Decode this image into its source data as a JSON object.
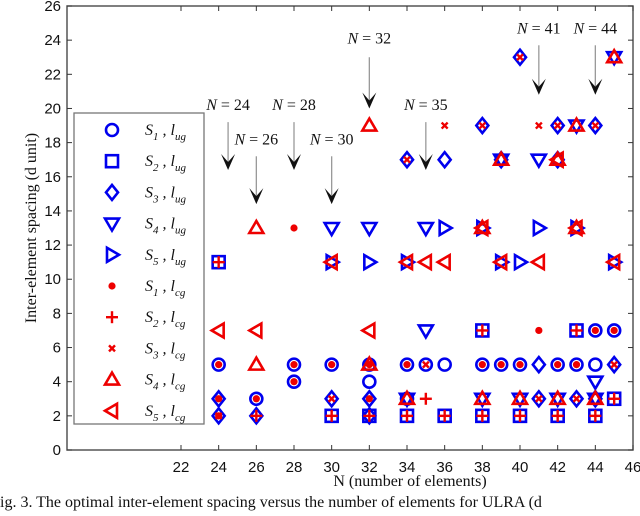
{
  "chart_data": {
    "type": "scatter",
    "title": "",
    "xlabel": "N (number of elements)",
    "ylabel": "Inter-element spacing (d unit)",
    "xlim": [
      15.9,
      46
    ],
    "ylim": [
      0,
      26
    ],
    "xticks": [
      22,
      24,
      26,
      28,
      30,
      32,
      34,
      36,
      38,
      40,
      42,
      44,
      46
    ],
    "yticks": [
      0,
      2,
      4,
      6,
      8,
      10,
      12,
      14,
      16,
      18,
      20,
      22,
      24,
      26
    ],
    "grid": false,
    "legend_position": "left-inside",
    "colors": {
      "ug": "#0000ee",
      "cg": "#ee0000",
      "axis": "#555555",
      "arrow": "#111111"
    },
    "series": [
      {
        "name": "S1, lug",
        "label": "S",
        "sub": "1",
        "l": "ug",
        "marker": "circle",
        "color": "#0000ee",
        "points": [
          [
            24,
            5
          ],
          [
            26,
            3
          ],
          [
            28,
            5
          ],
          [
            28,
            4
          ],
          [
            30,
            5
          ],
          [
            32,
            5
          ],
          [
            32,
            4
          ],
          [
            34,
            5
          ],
          [
            34,
            3
          ],
          [
            35,
            5
          ],
          [
            36,
            5
          ],
          [
            38,
            5
          ],
          [
            39,
            5
          ],
          [
            40,
            5
          ],
          [
            42,
            5
          ],
          [
            43,
            5
          ],
          [
            44,
            5
          ],
          [
            44,
            7
          ],
          [
            45,
            7
          ]
        ]
      },
      {
        "name": "S2, lug",
        "label": "S",
        "sub": "2",
        "l": "ug",
        "marker": "square",
        "color": "#0000ee",
        "points": [
          [
            30,
            2
          ],
          [
            32,
            2
          ],
          [
            34,
            2
          ],
          [
            36,
            2
          ],
          [
            38,
            2
          ],
          [
            38,
            7
          ],
          [
            40,
            2
          ],
          [
            42,
            2
          ],
          [
            43,
            7
          ],
          [
            44,
            2
          ],
          [
            45,
            3
          ],
          [
            24,
            11
          ]
        ]
      },
      {
        "name": "S3, lug",
        "label": "S",
        "sub": "3",
        "l": "ug",
        "marker": "diamond",
        "color": "#0000ee",
        "points": [
          [
            24,
            2
          ],
          [
            24,
            3
          ],
          [
            26,
            2
          ],
          [
            30,
            3
          ],
          [
            32,
            2
          ],
          [
            32,
            3
          ],
          [
            34,
            17
          ],
          [
            36,
            17
          ],
          [
            38,
            19
          ],
          [
            39,
            17
          ],
          [
            40,
            23
          ],
          [
            41,
            3
          ],
          [
            42,
            17
          ],
          [
            42,
            19
          ],
          [
            44,
            19
          ],
          [
            44,
            3
          ],
          [
            45,
            5
          ],
          [
            41,
            5
          ],
          [
            43,
            3
          ]
        ]
      },
      {
        "name": "S4, lug",
        "label": "S",
        "sub": "4",
        "l": "ug",
        "marker": "triangle-down",
        "color": "#0000ee",
        "points": [
          [
            30,
            13
          ],
          [
            32,
            13
          ],
          [
            35,
            13
          ],
          [
            35,
            7
          ],
          [
            34,
            3
          ],
          [
            38,
            3
          ],
          [
            39,
            17
          ],
          [
            40,
            3
          ],
          [
            41,
            17
          ],
          [
            42,
            3
          ],
          [
            43,
            19
          ],
          [
            44,
            4
          ],
          [
            44,
            3
          ],
          [
            45,
            23
          ]
        ]
      },
      {
        "name": "S5, lug",
        "label": "S",
        "sub": "5",
        "l": "ug",
        "marker": "triangle-right",
        "color": "#0000ee",
        "points": [
          [
            30,
            11
          ],
          [
            32,
            11
          ],
          [
            34,
            11
          ],
          [
            36,
            13
          ],
          [
            38,
            13
          ],
          [
            39,
            11
          ],
          [
            40,
            11
          ],
          [
            41,
            13
          ],
          [
            43,
            13
          ],
          [
            45,
            11
          ]
        ]
      },
      {
        "name": "S1, lcg",
        "label": "S",
        "sub": "1",
        "l": "cg",
        "marker": "dot",
        "color": "#ee0000",
        "points": [
          [
            24,
            5
          ],
          [
            24,
            3
          ],
          [
            24,
            2
          ],
          [
            26,
            3
          ],
          [
            28,
            13
          ],
          [
            28,
            5
          ],
          [
            28,
            4
          ],
          [
            30,
            5
          ],
          [
            32,
            5
          ],
          [
            32,
            3
          ],
          [
            34,
            5
          ],
          [
            38,
            5
          ],
          [
            39,
            5
          ],
          [
            40,
            5
          ],
          [
            41,
            7
          ],
          [
            42,
            5
          ],
          [
            43,
            5
          ],
          [
            44,
            7
          ],
          [
            45,
            7
          ]
        ]
      },
      {
        "name": "S2, lcg",
        "label": "S",
        "sub": "2",
        "l": "cg",
        "marker": "plus",
        "color": "#ee0000",
        "points": [
          [
            24,
            11
          ],
          [
            26,
            2
          ],
          [
            30,
            2
          ],
          [
            32,
            2
          ],
          [
            34,
            2
          ],
          [
            35,
            3
          ],
          [
            36,
            2
          ],
          [
            38,
            2
          ],
          [
            38,
            7
          ],
          [
            40,
            2
          ],
          [
            42,
            2
          ],
          [
            43,
            7
          ],
          [
            44,
            2
          ],
          [
            45,
            3
          ]
        ]
      },
      {
        "name": "S3, lcg",
        "label": "S",
        "sub": "3",
        "l": "cg",
        "marker": "x",
        "color": "#ee0000",
        "points": [
          [
            24,
            2
          ],
          [
            30,
            3
          ],
          [
            34,
            17
          ],
          [
            35,
            5
          ],
          [
            36,
            19
          ],
          [
            38,
            19
          ],
          [
            40,
            23
          ],
          [
            41,
            19
          ],
          [
            42,
            19
          ],
          [
            44,
            19
          ],
          [
            41,
            3
          ],
          [
            43,
            3
          ],
          [
            45,
            5
          ]
        ]
      },
      {
        "name": "S4, lcg",
        "label": "S",
        "sub": "4",
        "l": "cg",
        "marker": "triangle-up",
        "color": "#ee0000",
        "points": [
          [
            26,
            13
          ],
          [
            26,
            5
          ],
          [
            32,
            19
          ],
          [
            32,
            5
          ],
          [
            34,
            3
          ],
          [
            38,
            3
          ],
          [
            38,
            13
          ],
          [
            39,
            17
          ],
          [
            40,
            3
          ],
          [
            42,
            17
          ],
          [
            42,
            3
          ],
          [
            43,
            19
          ],
          [
            43,
            13
          ],
          [
            44,
            3
          ],
          [
            45,
            23
          ]
        ]
      },
      {
        "name": "S5, lcg",
        "label": "S",
        "sub": "5",
        "l": "cg",
        "marker": "triangle-left",
        "color": "#ee0000",
        "points": [
          [
            24,
            7
          ],
          [
            26,
            7
          ],
          [
            30,
            11
          ],
          [
            32,
            7
          ],
          [
            34,
            11
          ],
          [
            35,
            11
          ],
          [
            36,
            11
          ],
          [
            38,
            13
          ],
          [
            39,
            11
          ],
          [
            41,
            11
          ],
          [
            42,
            17
          ],
          [
            43,
            13
          ],
          [
            45,
            11
          ]
        ]
      }
    ],
    "annotations": [
      {
        "text_prefix": "N",
        "text_value": "= 24",
        "x": 24.5,
        "text_y": 19.9,
        "arrow_from": 19.2,
        "arrow_to": 16.4
      },
      {
        "text_prefix": "N",
        "text_value": "= 26",
        "x": 26,
        "text_y": 17.9,
        "arrow_from": 17.2,
        "arrow_to": 14.4
      },
      {
        "text_prefix": "N",
        "text_value": "= 28",
        "x": 28,
        "text_y": 19.9,
        "arrow_from": 19.2,
        "arrow_to": 16.4
      },
      {
        "text_prefix": "N",
        "text_value": "= 30",
        "x": 30,
        "text_y": 17.9,
        "arrow_from": 17.2,
        "arrow_to": 14.4
      },
      {
        "text_prefix": "N",
        "text_value": "= 32",
        "x": 32,
        "text_y": 23.8,
        "arrow_from": 23.0,
        "arrow_to": 20.0
      },
      {
        "text_prefix": "N",
        "text_value": "= 35",
        "x": 35,
        "text_y": 19.9,
        "arrow_from": 19.2,
        "arrow_to": 16.4
      },
      {
        "text_prefix": "N",
        "text_value": "= 41",
        "x": 41,
        "text_y": 24.4,
        "arrow_from": 23.7,
        "arrow_to": 20.8
      },
      {
        "text_prefix": "N",
        "text_value": "= 44",
        "x": 44,
        "text_y": 24.4,
        "arrow_from": 23.7,
        "arrow_to": 20.8
      }
    ]
  },
  "caption": "ig. 3. The optimal inter-element spacing versus the number of elements for ULRA (d"
}
